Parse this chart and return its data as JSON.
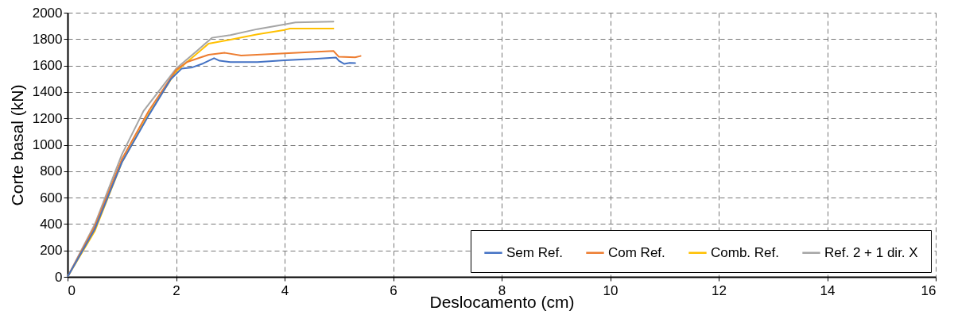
{
  "chart_data": {
    "type": "line",
    "xlabel": "Deslocamento (cm)",
    "ylabel": "Corte basal (kN)",
    "xlim": [
      0,
      16
    ],
    "xticks": [
      0,
      2,
      4,
      6,
      8,
      10,
      12,
      14,
      16
    ],
    "ylim": [
      0,
      2000
    ],
    "yticks": [
      0,
      200,
      400,
      600,
      800,
      1000,
      1200,
      1400,
      1600,
      1800,
      2000
    ],
    "grid": true,
    "legend": "bottom right",
    "marker": "none",
    "line_style": "solid",
    "series": [
      {
        "name": "Sem Ref.",
        "color": "#4472c4",
        "x": [
          0,
          0.5,
          1.0,
          1.5,
          1.9,
          2.1,
          2.3,
          2.5,
          2.7,
          2.8,
          3.0,
          3.5,
          4.0,
          4.6,
          4.95,
          5.0,
          5.1,
          5.2,
          5.3
        ],
        "values": [
          0,
          360,
          866,
          1226,
          1496,
          1576,
          1586,
          1616,
          1656,
          1636,
          1626,
          1626,
          1640,
          1652,
          1660,
          1636,
          1612,
          1620,
          1618
        ]
      },
      {
        "name": "Com Ref.",
        "color": "#ed7d31",
        "x": [
          0,
          0.5,
          1.0,
          1.5,
          2.0,
          2.2,
          2.6,
          2.9,
          3.2,
          4.0,
          4.9,
          5.0,
          5.3,
          5.4
        ],
        "values": [
          0,
          380,
          890,
          1260,
          1566,
          1626,
          1682,
          1696,
          1676,
          1692,
          1710,
          1666,
          1662,
          1672
        ]
      },
      {
        "name": "Comb. Ref.",
        "color": "#ffc000",
        "x": [
          0,
          0.5,
          1.0,
          1.5,
          2.0,
          2.2,
          2.6,
          3.0,
          3.5,
          4.0,
          4.1,
          4.9
        ],
        "values": [
          0,
          345,
          866,
          1236,
          1556,
          1626,
          1766,
          1796,
          1836,
          1870,
          1880,
          1880
        ]
      },
      {
        "name": "Ref. 2 + 1 dir. X",
        "color": "#a5a5a5",
        "x": [
          0,
          0.5,
          1.0,
          1.4,
          2.0,
          2.4,
          2.66,
          3.0,
          3.5,
          4.0,
          4.2,
          4.9
        ],
        "values": [
          0,
          396,
          926,
          1256,
          1576,
          1716,
          1810,
          1830,
          1876,
          1912,
          1926,
          1932
        ]
      }
    ]
  }
}
